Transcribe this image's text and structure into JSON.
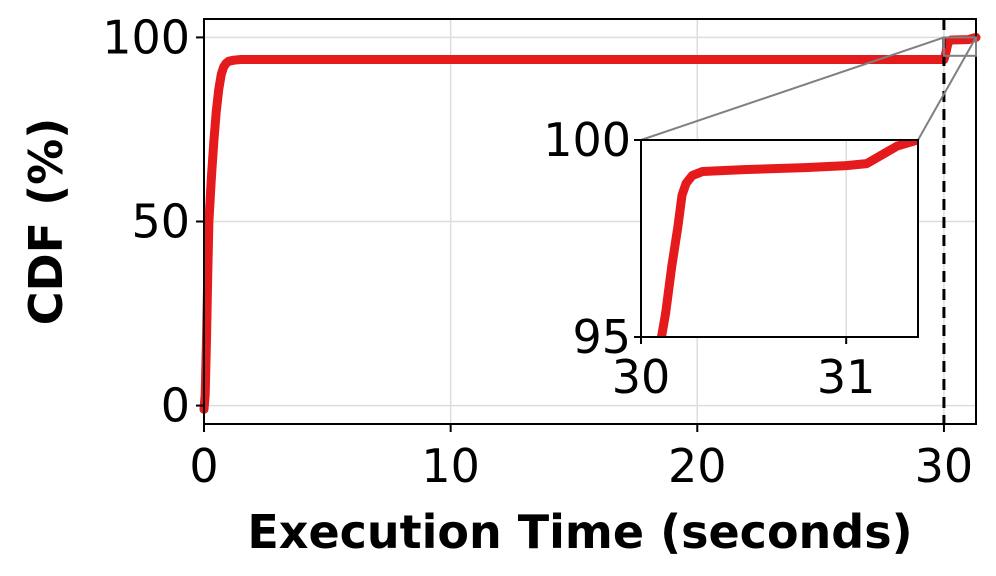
{
  "chart_data": [
    {
      "type": "line",
      "title": "",
      "xlabel": "Execution Time (seconds)",
      "ylabel": "CDF (%)",
      "xlim": [
        0,
        31.3
      ],
      "ylim": [
        -5,
        105
      ],
      "xticks": [
        0,
        10,
        20,
        30
      ],
      "yticks": [
        0,
        50,
        100
      ],
      "grid": true,
      "series": [
        {
          "color": "#e41a1c",
          "x": [
            0,
            0.05,
            0.1,
            0.15,
            0.2,
            0.3,
            0.4,
            0.5,
            0.6,
            0.7,
            0.8,
            0.9,
            1.0,
            1.2,
            1.5,
            2.0,
            5,
            10,
            15,
            20,
            25,
            29.9,
            30.0,
            30.05,
            30.1,
            30.15,
            30.2,
            30.3,
            31.0,
            31.2,
            31.3
          ],
          "y": [
            -1,
            3,
            18,
            35,
            50,
            62,
            72,
            80,
            86,
            90,
            92,
            93,
            93.5,
            93.8,
            94,
            94,
            94,
            94,
            94,
            94,
            94,
            94,
            94,
            95,
            96.5,
            98,
            99,
            99.3,
            99.4,
            99.8,
            100
          ]
        }
      ],
      "annotations": [
        {
          "type": "vline",
          "x": 30,
          "style": "dashed",
          "color": "#000000"
        }
      ]
    },
    {
      "type": "line",
      "title": "",
      "xlabel": "",
      "ylabel": "",
      "xlim": [
        30,
        31.35
      ],
      "ylim": [
        95,
        100
      ],
      "xticks": [
        30,
        31
      ],
      "yticks": [
        95,
        100
      ],
      "grid": true,
      "series": [
        {
          "color": "#e41a1c",
          "x": [
            30.1,
            30.12,
            30.15,
            30.18,
            30.2,
            30.22,
            30.25,
            30.3,
            30.5,
            30.8,
            31.0,
            31.1,
            31.2,
            31.25,
            31.35
          ],
          "y": [
            95,
            95.6,
            96.8,
            97.8,
            98.6,
            98.9,
            99.1,
            99.2,
            99.25,
            99.3,
            99.35,
            99.4,
            99.7,
            99.85,
            100
          ]
        }
      ]
    }
  ]
}
